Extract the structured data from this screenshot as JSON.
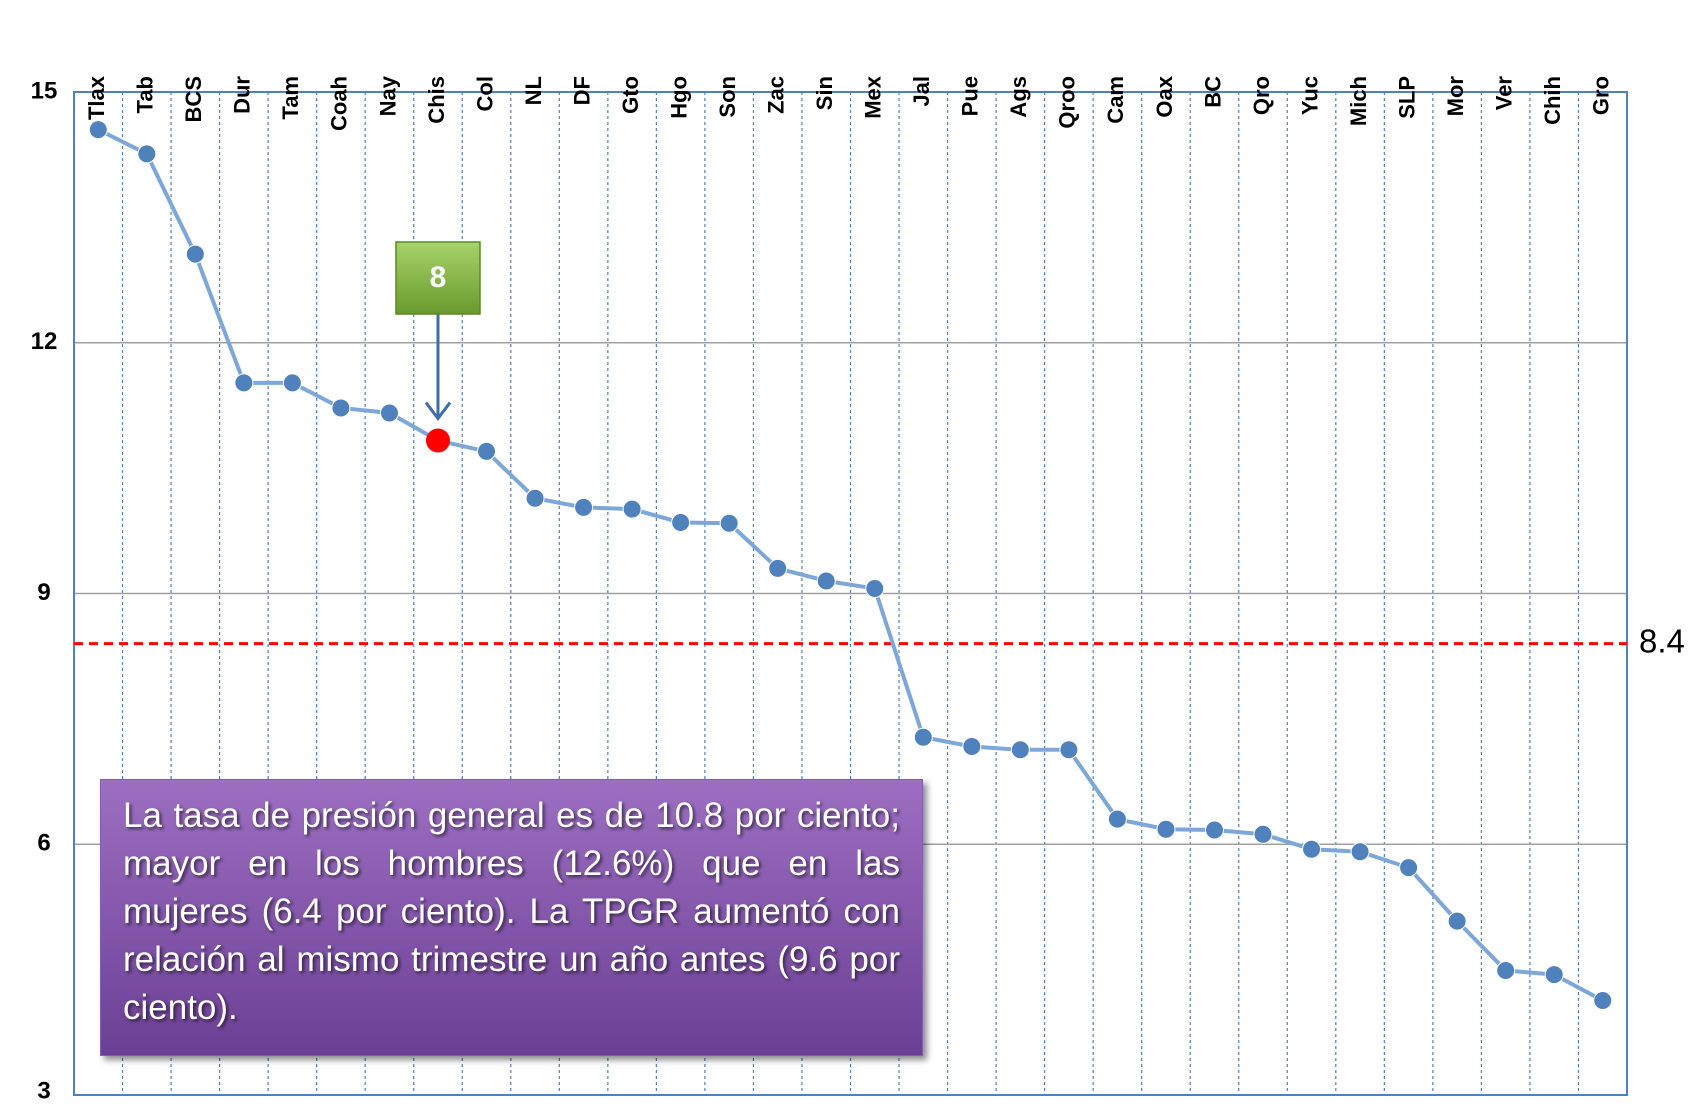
{
  "chart_data": {
    "type": "line",
    "categories": [
      "Tlax",
      "Tab",
      "BCS",
      "Dur",
      "Tam",
      "Coah",
      "Nay",
      "Chis",
      "Col",
      "NL",
      "DF",
      "Gto",
      "Hgo",
      "Son",
      "Zac",
      "Sin",
      "Mex",
      "Jal",
      "Pue",
      "Ags",
      "Qroo",
      "Cam",
      "Oax",
      "BC",
      "Qro",
      "Yuc",
      "Mich",
      "SLP",
      "Mor",
      "Ver",
      "Chih",
      "Gro"
    ],
    "series": [
      {
        "color": "#7da7d9",
        "marker_color": "#4f81bd",
        "values": [
          14.55,
          14.26,
          13.06,
          11.52,
          11.52,
          11.22,
          11.16,
          10.83,
          10.7,
          10.14,
          10.03,
          10.01,
          9.85,
          9.84,
          9.3,
          9.15,
          9.06,
          7.28,
          7.17,
          7.13,
          7.13,
          6.3,
          6.18,
          6.17,
          6.12,
          5.94,
          5.91,
          5.72,
          5.08,
          4.49,
          4.44,
          4.13
        ]
      }
    ],
    "ylim": [
      3,
      15
    ],
    "yticks": [
      3,
      6,
      9,
      12,
      15
    ],
    "grid": true,
    "reference_line": {
      "value": 8.4,
      "label": "8.4",
      "color": "#ff0000"
    },
    "annotation": {
      "text": "8",
      "x": "Chis",
      "color": "#ff0000"
    },
    "text_box": "La tasa de presión general es de 10.8 por ciento; mayor en los hombres (12.6%) que en las mujeres (6.4 por ciento). La TPGR aumentó con relación al mismo trimestre un año antes (9.6 por ciento)."
  }
}
